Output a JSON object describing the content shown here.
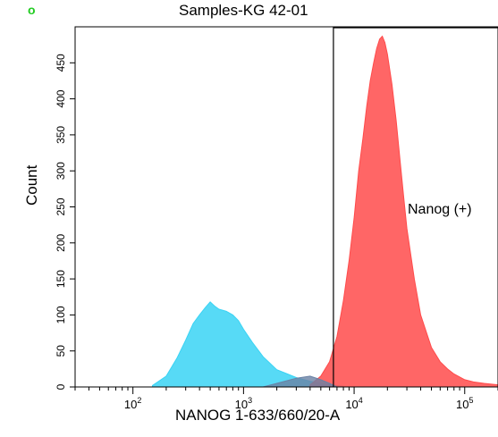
{
  "panel_letter": "o",
  "panel_letter_color": "#22cc22",
  "chart_data": {
    "type": "area",
    "title": "Samples-KG 42-01",
    "xlabel": "NANOG 1-633/660/20-A",
    "ylabel": "Count",
    "xscale": "log",
    "xlim": [
      30,
      200000
    ],
    "ylim": [
      0,
      500
    ],
    "y_ticks": [
      0,
      50,
      100,
      150,
      200,
      250,
      300,
      350,
      400,
      450
    ],
    "x_ticks": [
      {
        "value": 100,
        "base": "10",
        "exp": "2"
      },
      {
        "value": 1000,
        "base": "10",
        "exp": "3"
      },
      {
        "value": 10000,
        "base": "10",
        "exp": "4"
      },
      {
        "value": 100000,
        "base": "10",
        "exp": "5"
      }
    ],
    "series": [
      {
        "color": "#3ad3f4",
        "x": [
          150,
          200,
          250,
          300,
          350,
          400,
          450,
          500,
          550,
          600,
          700,
          800,
          900,
          1000,
          1200,
          1500,
          2000,
          2500,
          3000,
          4000,
          5000,
          6000,
          7000,
          8000
        ],
        "y": [
          2,
          15,
          40,
          65,
          88,
          100,
          110,
          118,
          112,
          108,
          105,
          100,
          92,
          80,
          62,
          42,
          24,
          18,
          13,
          8,
          5,
          3,
          2,
          1
        ]
      },
      {
        "color": "#ff4b4b",
        "x": [
          4000,
          5000,
          6000,
          7000,
          8000,
          9000,
          10000,
          11000,
          12000,
          13000,
          14000,
          15000,
          16000,
          17000,
          18000,
          19000,
          20000,
          22000,
          24000,
          26000,
          28000,
          30000,
          35000,
          40000,
          50000,
          60000,
          70000,
          80000,
          100000,
          120000,
          150000,
          200000
        ],
        "y": [
          3,
          15,
          35,
          70,
          120,
          175,
          235,
          300,
          345,
          390,
          425,
          450,
          470,
          483,
          487,
          478,
          462,
          420,
          370,
          315,
          265,
          220,
          150,
          100,
          55,
          35,
          25,
          18,
          10,
          7,
          5,
          3
        ]
      },
      {
        "color": "#6a82a5",
        "x": [
          1500,
          2000,
          3000,
          4000,
          5000,
          6000,
          7000
        ],
        "y": [
          0,
          5,
          12,
          15,
          10,
          5,
          0
        ]
      }
    ],
    "gate": {
      "label": "Nanog (+)",
      "x_start": 6500
    }
  }
}
